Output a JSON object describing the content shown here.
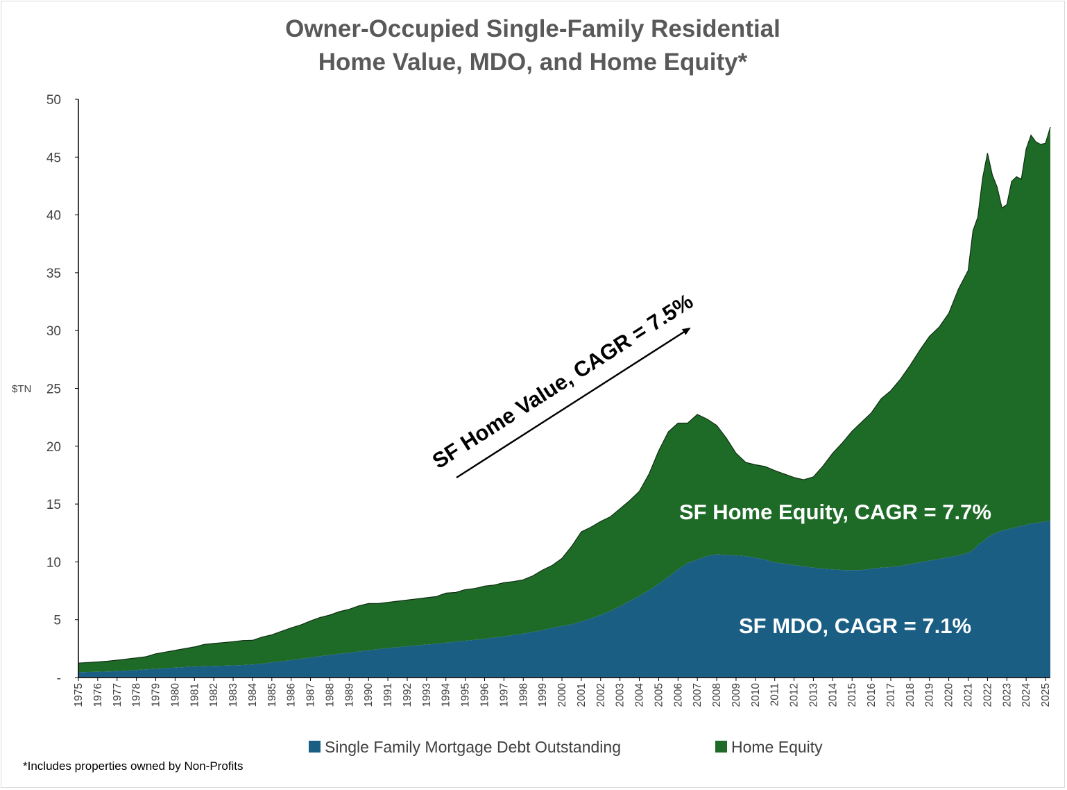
{
  "chart_data": {
    "type": "area",
    "stacked": true,
    "title": "Owner-Occupied Single-Family Residential",
    "subtitle": "Home Value, MDO, and Home Equity*",
    "ylabel": "$TN",
    "xlabel": "",
    "ylim": [
      0,
      50
    ],
    "yticks": [
      0,
      5,
      10,
      15,
      20,
      25,
      30,
      35,
      40,
      45,
      50
    ],
    "ytick_labels": [
      "-",
      "5",
      "10",
      "15",
      "20",
      "25",
      "30",
      "35",
      "40",
      "45",
      "50"
    ],
    "x_categories": [
      "1975",
      "1976",
      "1977",
      "1978",
      "1979",
      "1980",
      "1981",
      "1982",
      "1983",
      "1984",
      "1985",
      "1986",
      "1987",
      "1988",
      "1989",
      "1990",
      "1991",
      "1992",
      "1993",
      "1994",
      "1995",
      "1996",
      "1997",
      "1998",
      "1999",
      "2000",
      "2001",
      "2002",
      "2003",
      "2004",
      "2005",
      "2006",
      "2007",
      "2008",
      "2009",
      "2010",
      "2011",
      "2012",
      "2013",
      "2014",
      "2015",
      "2016",
      "2017",
      "2018",
      "2019",
      "2020",
      "2021",
      "2022",
      "2023",
      "2024",
      "2025"
    ],
    "x": [
      1975,
      1975.5,
      1976,
      1976.5,
      1977,
      1977.5,
      1978,
      1978.5,
      1979,
      1979.5,
      1980,
      1980.5,
      1981,
      1981.5,
      1982,
      1982.5,
      1983,
      1983.5,
      1984,
      1984.5,
      1985,
      1985.5,
      1986,
      1986.5,
      1987,
      1987.5,
      1988,
      1988.5,
      1989,
      1989.5,
      1990,
      1990.5,
      1991,
      1991.5,
      1992,
      1992.5,
      1993,
      1993.5,
      1994,
      1994.5,
      1995,
      1995.5,
      1996,
      1996.5,
      1997,
      1997.5,
      1998,
      1998.5,
      1999,
      1999.5,
      2000,
      2000.5,
      2001,
      2001.5,
      2002,
      2002.5,
      2003,
      2003.5,
      2004,
      2004.5,
      2005,
      2005.5,
      2006,
      2006.5,
      2007,
      2007.5,
      2008,
      2008.5,
      2009,
      2009.5,
      2010,
      2010.5,
      2011,
      2011.5,
      2012,
      2012.5,
      2013,
      2013.5,
      2014,
      2014.5,
      2015,
      2015.5,
      2016,
      2016.5,
      2017,
      2017.5,
      2018,
      2018.5,
      2019,
      2019.5,
      2020,
      2020.5,
      2021,
      2021.25,
      2021.5,
      2021.75,
      2022,
      2022.25,
      2022.5,
      2022.75,
      2023,
      2023.25,
      2023.5,
      2023.75,
      2024,
      2024.25,
      2024.5,
      2024.75,
      2025,
      2025.25
    ],
    "series": [
      {
        "name": "Single Family Mortgage Debt Outstanding",
        "color": "#1a5e84",
        "values": [
          0.45,
          0.48,
          0.5,
          0.53,
          0.55,
          0.6,
          0.65,
          0.7,
          0.75,
          0.8,
          0.85,
          0.9,
          0.95,
          0.98,
          1.0,
          1.02,
          1.05,
          1.08,
          1.12,
          1.2,
          1.3,
          1.4,
          1.5,
          1.6,
          1.72,
          1.85,
          1.95,
          2.05,
          2.15,
          2.25,
          2.35,
          2.45,
          2.55,
          2.62,
          2.7,
          2.78,
          2.85,
          2.92,
          3.0,
          3.1,
          3.18,
          3.26,
          3.35,
          3.45,
          3.55,
          3.68,
          3.8,
          3.95,
          4.1,
          4.3,
          4.45,
          4.6,
          4.85,
          5.1,
          5.4,
          5.75,
          6.15,
          6.6,
          7.05,
          7.55,
          8.1,
          8.7,
          9.35,
          9.9,
          10.2,
          10.5,
          10.65,
          10.6,
          10.55,
          10.5,
          10.35,
          10.2,
          9.95,
          9.85,
          9.72,
          9.62,
          9.5,
          9.4,
          9.35,
          9.3,
          9.28,
          9.3,
          9.4,
          9.5,
          9.55,
          9.65,
          9.8,
          9.95,
          10.1,
          10.25,
          10.4,
          10.55,
          10.8,
          11.0,
          11.45,
          11.75,
          12.1,
          12.35,
          12.55,
          12.7,
          12.8,
          12.9,
          13.0,
          13.1,
          13.2,
          13.3,
          13.35,
          13.42,
          13.48,
          13.55
        ]
      },
      {
        "name": "Home Equity",
        "color": "#1e6b28",
        "values": [
          0.8,
          0.82,
          0.85,
          0.88,
          0.95,
          1.0,
          1.05,
          1.1,
          1.3,
          1.4,
          1.5,
          1.6,
          1.7,
          1.88,
          1.95,
          2.0,
          2.05,
          2.12,
          2.1,
          2.3,
          2.4,
          2.6,
          2.8,
          2.95,
          3.18,
          3.35,
          3.45,
          3.65,
          3.75,
          3.95,
          4.05,
          3.95,
          3.95,
          3.98,
          4.0,
          4.02,
          4.05,
          4.08,
          4.3,
          4.25,
          4.42,
          4.44,
          4.55,
          4.55,
          4.65,
          4.62,
          4.65,
          4.85,
          5.2,
          5.4,
          5.85,
          6.75,
          7.75,
          7.9,
          8.1,
          8.15,
          8.45,
          8.7,
          9.05,
          10.05,
          11.5,
          12.55,
          12.65,
          12.1,
          12.55,
          11.85,
          11.15,
          10.1,
          8.85,
          8.1,
          8.05,
          8.05,
          7.95,
          7.75,
          7.58,
          7.48,
          7.85,
          8.9,
          10.05,
          11.0,
          12.02,
          12.8,
          13.5,
          14.6,
          15.25,
          16.15,
          17.2,
          18.35,
          19.4,
          20.05,
          21.1,
          23.05,
          24.4,
          27.65,
          28.35,
          31.45,
          33.25,
          31.1,
          29.85,
          27.9,
          28.1,
          30.0,
          30.3,
          30.0,
          32.5,
          33.6,
          32.97,
          32.68,
          32.72,
          34.05
        ]
      }
    ],
    "legend": {
      "position": "bottom",
      "entries": [
        "Single Family Mortgage Debt Outstanding",
        "Home Equity"
      ]
    },
    "annotations": [
      {
        "text": "SF Home Value, CAGR = 7.5%"
      },
      {
        "text": "SF Home Equity, CAGR = 7.7%"
      },
      {
        "text": "SF MDO, CAGR = 7.1%"
      }
    ],
    "footnote": "*Includes properties owned by Non-Profits",
    "grid": false
  }
}
